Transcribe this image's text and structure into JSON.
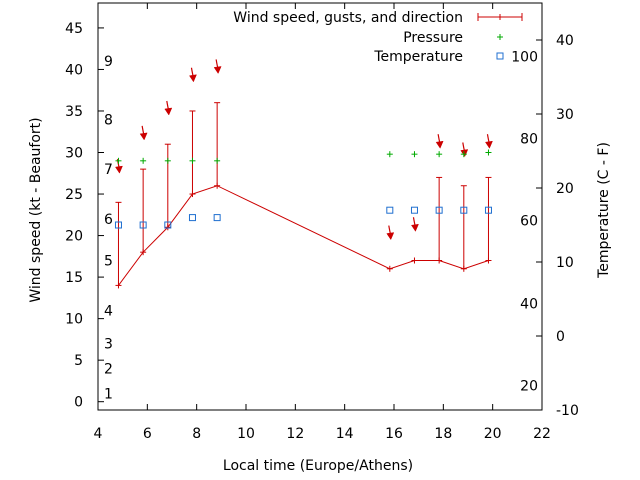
{
  "chart_data": {
    "type": "line",
    "xlabel": "Local time (Europe/Athens)",
    "ylabel": "Wind speed (kt - Beaufort)",
    "y2label": "Temperature (C - F)",
    "xlim": [
      4,
      22
    ],
    "ylim": [
      -1,
      48
    ],
    "y2lim": [
      -10,
      45
    ],
    "x_ticks": [
      "4",
      "6",
      "8",
      "10",
      "12",
      "14",
      "16",
      "18",
      "20",
      "22"
    ],
    "y_ticks": [
      "0",
      "5",
      "10",
      "15",
      "20",
      "25",
      "30",
      "35",
      "40",
      "45"
    ],
    "y2_ticks": [
      "-10",
      "0",
      "10",
      "20",
      "30",
      "40"
    ],
    "beaufort_labels": [
      {
        "label": "1",
        "y": 1
      },
      {
        "label": "2",
        "y": 4
      },
      {
        "label": "3",
        "y": 7
      },
      {
        "label": "4",
        "y": 11
      },
      {
        "label": "5",
        "y": 17
      },
      {
        "label": "6",
        "y": 22
      },
      {
        "label": "7",
        "y": 28
      },
      {
        "label": "8",
        "y": 34
      },
      {
        "label": "9",
        "y": 41
      }
    ],
    "fahrenheit_labels": [
      {
        "label": "20",
        "y2": -6.7
      },
      {
        "label": "40",
        "y2": 4.4
      },
      {
        "label": "60",
        "y2": 15.6
      },
      {
        "label": "80",
        "y2": 26.7
      },
      {
        "label": "100",
        "y2": 37.8
      }
    ],
    "legend_position": "top-right",
    "series": [
      {
        "name": "Wind speed, gusts, and direction",
        "color": "#cc0000",
        "x": [
          4.83,
          5.83,
          6.83,
          7.83,
          8.83,
          15.83,
          16.83,
          17.83,
          18.83,
          19.83
        ],
        "y": [
          14,
          18,
          21,
          25,
          26,
          16,
          17,
          17,
          16,
          17
        ],
        "gusts": [
          24,
          28,
          31,
          35,
          36,
          null,
          null,
          27,
          26,
          27
        ],
        "direction_arrow_y": [
          28,
          32,
          35,
          39,
          40,
          20,
          21,
          31,
          30,
          31
        ]
      },
      {
        "name": "Pressure",
        "color": "#00aa00",
        "x": [
          4.83,
          5.83,
          6.83,
          7.83,
          8.83,
          15.83,
          16.83,
          17.83,
          18.83,
          19.83
        ],
        "y": [
          29,
          29,
          29,
          29,
          29,
          29.8,
          29.8,
          29.8,
          29.8,
          30
        ]
      },
      {
        "name": "Temperature",
        "color": "#1f6fd0",
        "x": [
          4.83,
          5.83,
          6.83,
          7.83,
          8.83,
          15.83,
          16.83,
          17.83,
          18.83,
          19.83
        ],
        "y2": [
          15,
          15,
          15,
          16,
          16,
          17,
          17,
          17,
          17,
          17
        ]
      }
    ]
  }
}
